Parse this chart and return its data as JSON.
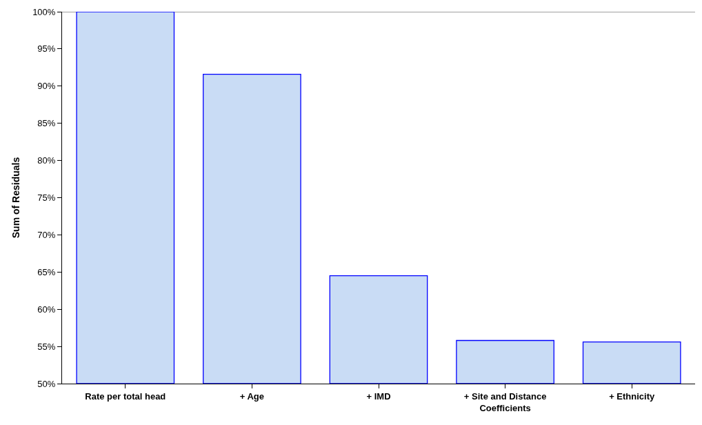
{
  "chart_data": {
    "type": "bar",
    "ylabel": "Sum of Residuals",
    "categories": [
      "Rate per total head",
      "+ Age",
      "+ IMD",
      "+ Site and Distance Coefficients",
      "+ Ethnicity"
    ],
    "series": [
      {
        "color": "#c9dcf5",
        "values": [
          100,
          91.6,
          64.5,
          55.8,
          55.6
        ]
      }
    ],
    "ylim": [
      50,
      100
    ],
    "yticks": [
      {
        "value": 50,
        "label": "50%"
      },
      {
        "value": 55,
        "label": "55%"
      },
      {
        "value": 60,
        "label": "60%"
      },
      {
        "value": 65,
        "label": "65%"
      },
      {
        "value": 70,
        "label": "70%"
      },
      {
        "value": 75,
        "label": "75%"
      },
      {
        "value": 80,
        "label": "80%"
      },
      {
        "value": 85,
        "label": "85%"
      },
      {
        "value": 90,
        "label": "90%"
      },
      {
        "value": 95,
        "label": "95%"
      },
      {
        "value": 100,
        "label": "100%"
      }
    ],
    "grid": false
  }
}
